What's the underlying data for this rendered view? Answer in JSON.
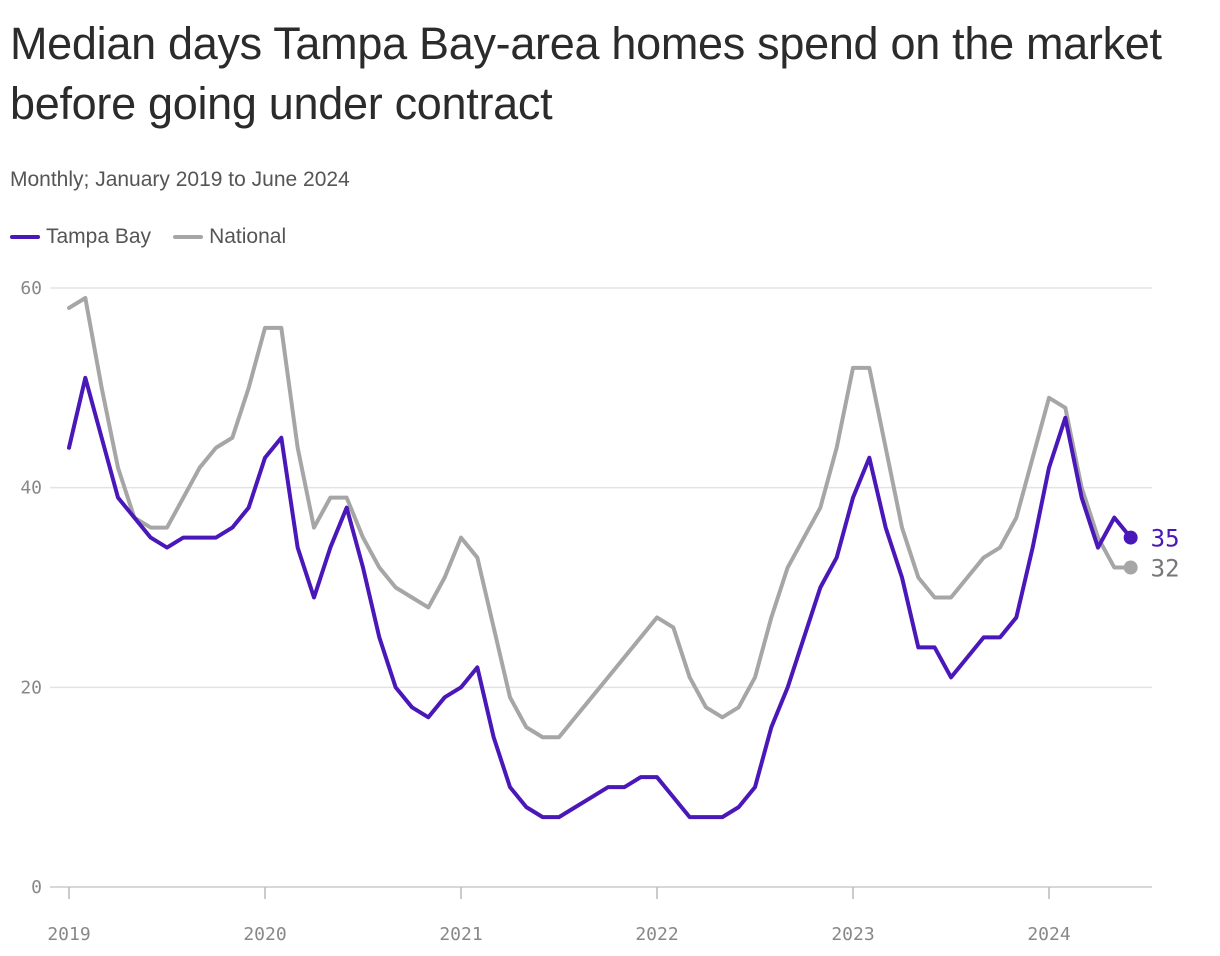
{
  "chart_data": {
    "type": "line",
    "title": "Median days Tampa Bay-area homes spend on the market before going under contract",
    "subtitle": "Monthly; January 2019 to June 2024",
    "xlabel": "",
    "ylabel": "",
    "ylim": [
      0,
      60
    ],
    "yticks": [
      "0",
      "20",
      "40",
      "60"
    ],
    "xticks": [
      "2019",
      "2020",
      "2021",
      "2022",
      "2023",
      "2024"
    ],
    "x_start": "2019-01",
    "x_end": "2024-06",
    "grid": true,
    "legend": "top-left",
    "series": [
      {
        "name": "Tampa Bay",
        "color": "#4a17b8",
        "end_label": "35",
        "values": [
          44,
          51,
          45,
          39,
          37,
          35,
          34,
          35,
          35,
          35,
          36,
          38,
          43,
          45,
          34,
          29,
          34,
          38,
          32,
          25,
          20,
          18,
          17,
          19,
          20,
          22,
          15,
          10,
          8,
          7,
          7,
          8,
          9,
          10,
          10,
          11,
          11,
          9,
          7,
          7,
          7,
          8,
          10,
          16,
          20,
          25,
          30,
          33,
          39,
          43,
          36,
          31,
          24,
          24,
          21,
          23,
          25,
          25,
          27,
          34,
          42,
          47,
          39,
          34,
          37,
          35
        ]
      },
      {
        "name": "National",
        "color": "#a6a6a6",
        "end_label": "32",
        "values": [
          58,
          59,
          50,
          42,
          37,
          36,
          36,
          39,
          42,
          44,
          45,
          50,
          56,
          56,
          44,
          36,
          39,
          39,
          35,
          32,
          30,
          29,
          28,
          31,
          35,
          33,
          26,
          19,
          16,
          15,
          15,
          17,
          19,
          21,
          23,
          25,
          27,
          26,
          21,
          18,
          17,
          18,
          21,
          27,
          32,
          35,
          38,
          44,
          52,
          52,
          44,
          36,
          31,
          29,
          29,
          31,
          33,
          34,
          37,
          43,
          49,
          48,
          40,
          35,
          32,
          32
        ]
      }
    ]
  }
}
